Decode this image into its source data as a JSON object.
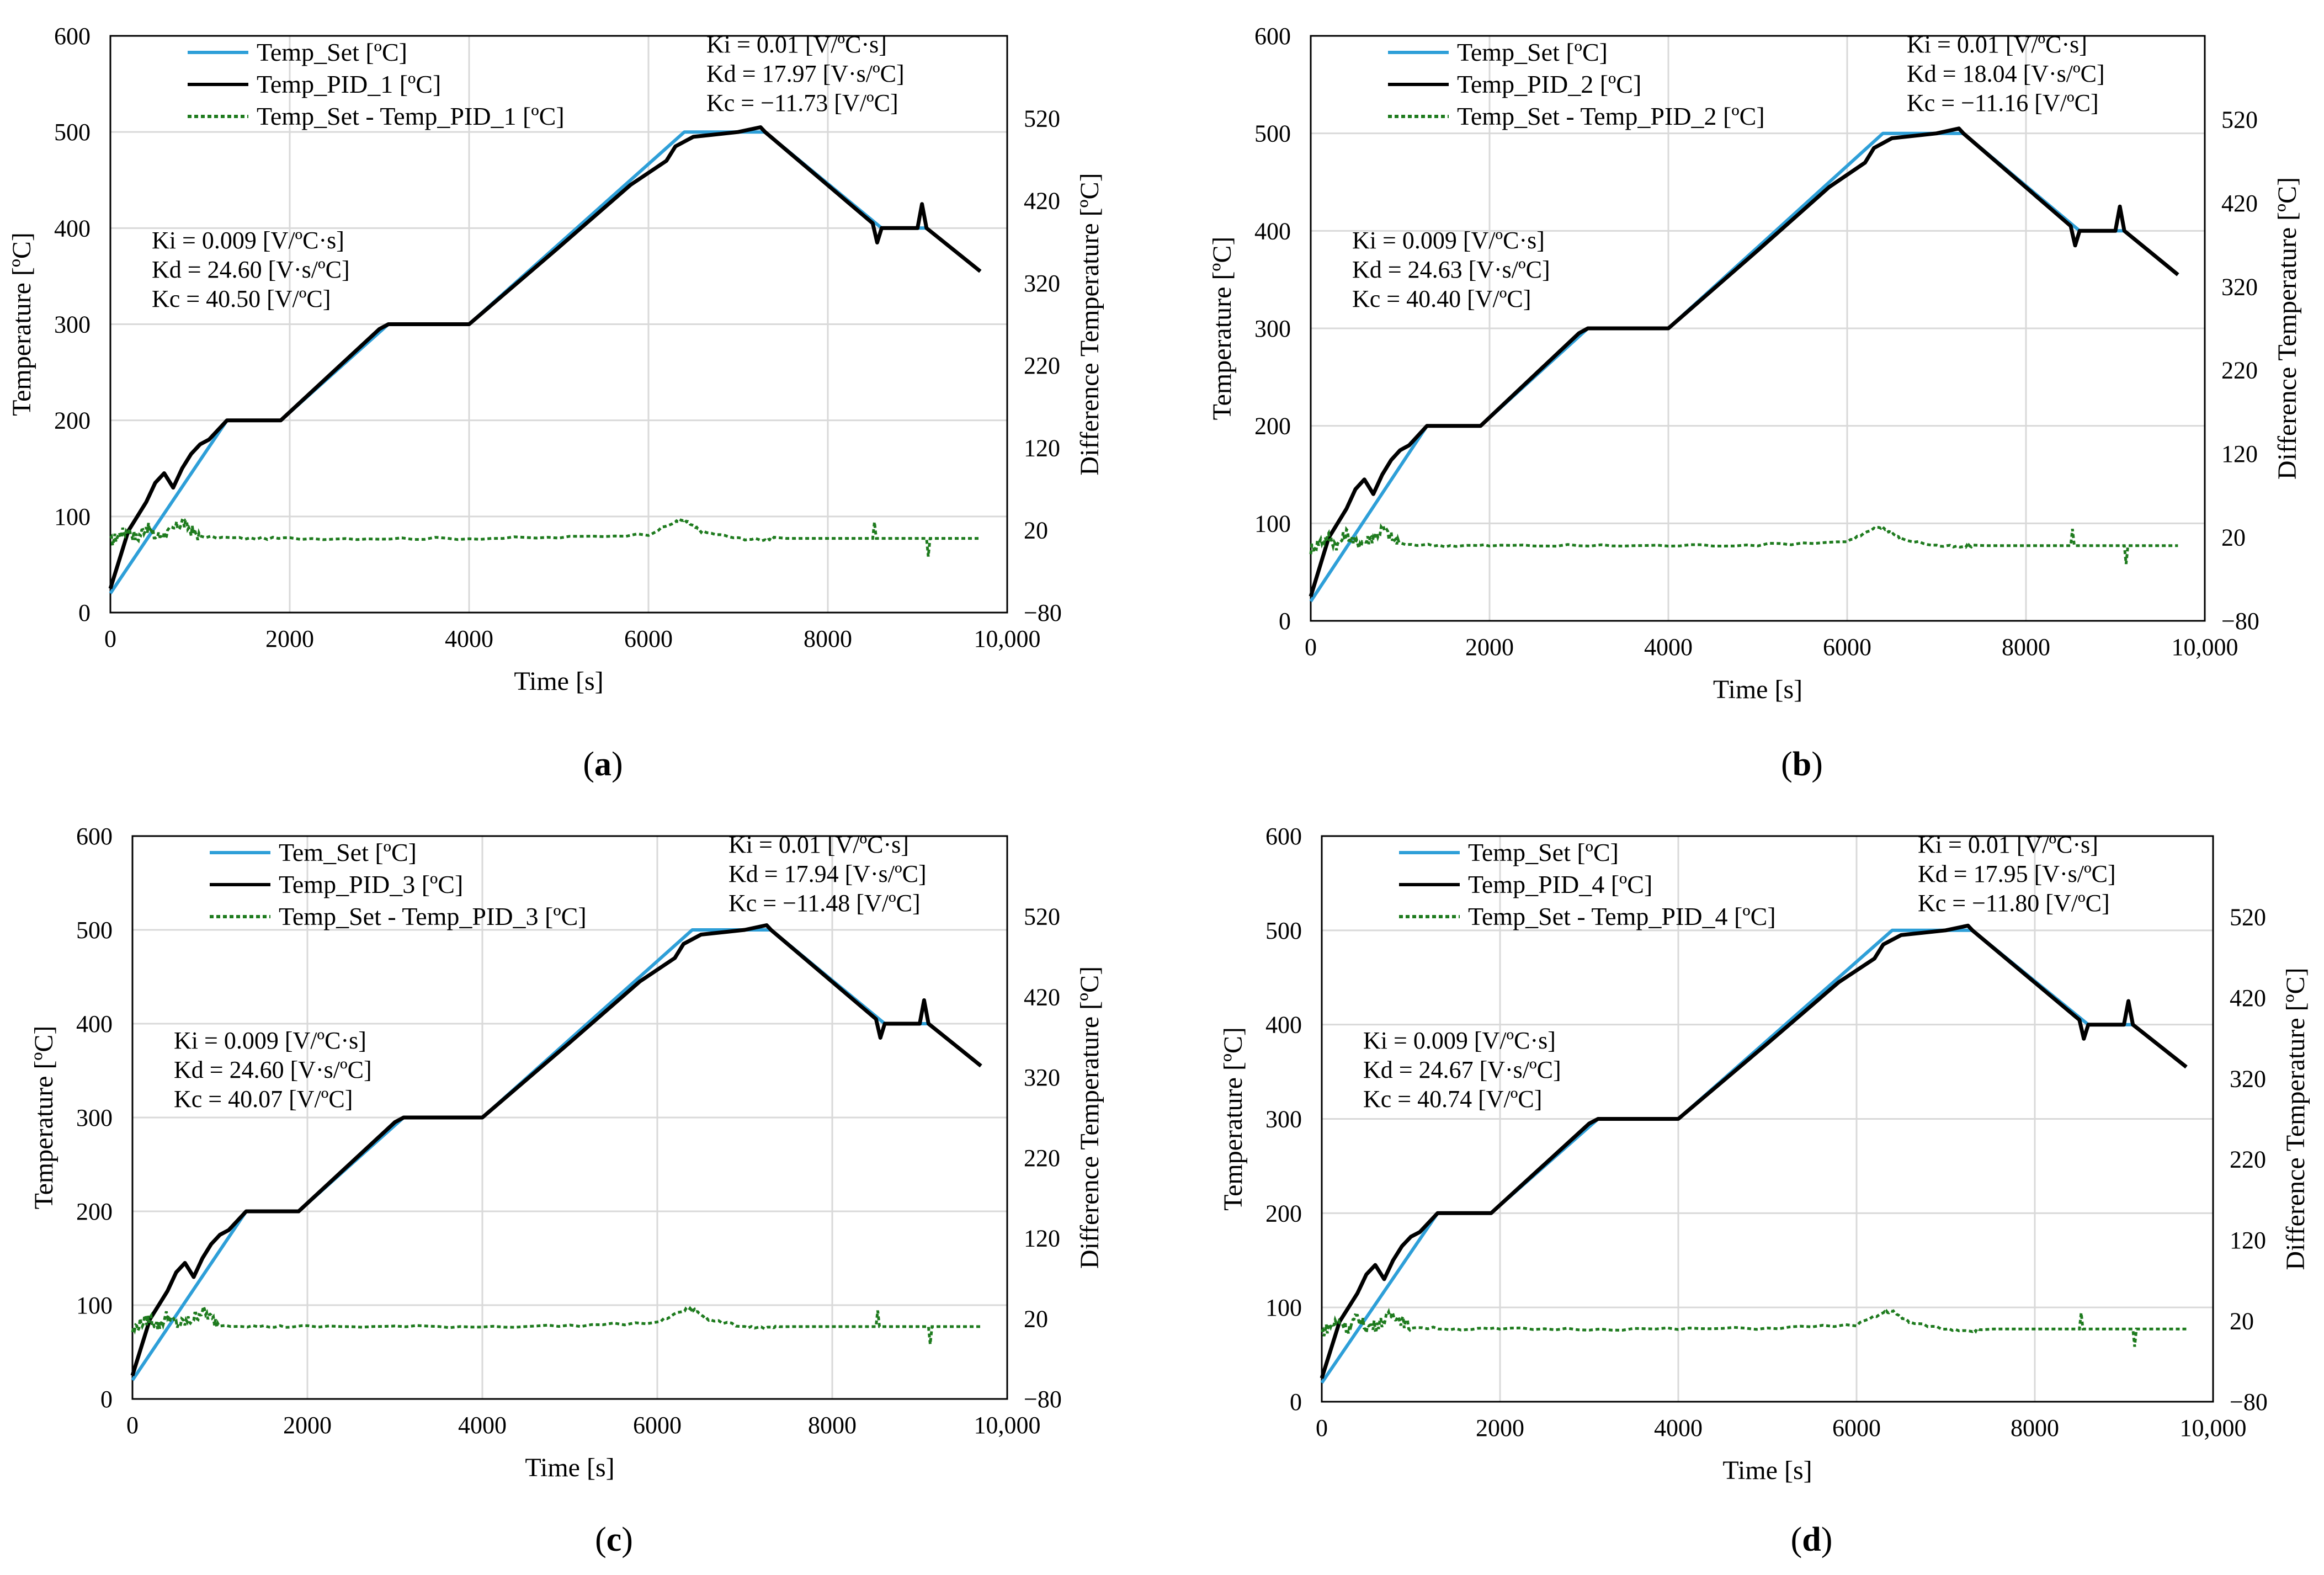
{
  "colors": {
    "set": "#2e9fd8",
    "pid": "#000000",
    "diff": "#1e7b1e",
    "grid": "#d9d9d9",
    "axis": "#000000"
  },
  "chart_data": [
    {
      "type": "line",
      "panel_label": "(a)",
      "xlabel": "Time [s]",
      "ylabel": "Temperature [ºC]",
      "y2label": "Difference Temperature [ºC]",
      "xlim": [
        0,
        10000
      ],
      "ylim": [
        0,
        600
      ],
      "y2lim": [
        -80,
        620
      ],
      "xticks": [
        "0",
        "2000",
        "4000",
        "6000",
        "8000",
        "10,000"
      ],
      "yticks": [
        "0",
        "100",
        "200",
        "300",
        "400",
        "500",
        "600"
      ],
      "y2ticks": [
        "−80",
        "20",
        "120",
        "220",
        "320",
        "420",
        "520"
      ],
      "legend": [
        "Temp_Set [ºC]",
        "Temp_PID_1 [ºC]",
        "Temp_Set - Temp_PID_1 [ºC]"
      ],
      "annotations_left": [
        "Ki = 0.009  [V/ºC·s]",
        "Kd = 24.60  [V·s/ºC]",
        "Kc = 40.50  [V/ºC]"
      ],
      "annotations_right": [
        "Ki = 0.01  [V/ºC·s]",
        "Kd = 17.97  [V·s/ºC]",
        "Kc = −11.73  [V/ºC]"
      ],
      "series": [
        {
          "role": "set",
          "x": [
            0,
            1300,
            1900,
            3100,
            4000,
            6400,
            7300,
            8600,
            9100,
            9700
          ],
          "y": [
            20,
            200,
            200,
            300,
            300,
            500,
            500,
            400,
            400,
            355
          ]
        },
        {
          "role": "pid",
          "x": [
            0,
            100,
            200,
            300,
            400,
            500,
            600,
            700,
            800,
            900,
            1000,
            1100,
            1300,
            1400,
            1900,
            3000,
            3100,
            3950,
            4000,
            5000,
            5800,
            6200,
            6300,
            6400,
            6500,
            7000,
            7250,
            7300,
            8500,
            8550,
            8600,
            9000,
            9050,
            9100,
            9700
          ],
          "y": [
            25,
            55,
            85,
            100,
            115,
            135,
            145,
            130,
            150,
            165,
            175,
            180,
            200,
            200,
            200,
            295,
            300,
            300,
            300,
            380,
            445,
            470,
            485,
            490,
            495,
            500,
            505,
            500,
            405,
            385,
            400,
            400,
            425,
            400,
            355
          ]
        },
        {
          "role": "diff",
          "x": [
            0,
            100,
            200,
            300,
            400,
            500,
            600,
            700,
            800,
            900,
            1000,
            1500,
            2000,
            3000,
            4000,
            5000,
            6000,
            6300,
            6400,
            6500,
            6600,
            7000,
            7300,
            7400,
            8500,
            8520,
            8540,
            9100,
            9120,
            9140,
            9700
          ],
          "y": [
            5,
            15,
            20,
            10,
            25,
            12,
            15,
            20,
            30,
            20,
            12,
            10,
            10,
            10,
            10,
            11,
            15,
            30,
            32,
            25,
            18,
            10,
            8,
            10,
            10,
            30,
            10,
            10,
            -12,
            10,
            10
          ]
        }
      ]
    },
    {
      "type": "line",
      "panel_label": "(b)",
      "xlabel": "Time [s]",
      "ylabel": "Temperature [ºC]",
      "y2label": "Difference Temperature [ºC]",
      "xlim": [
        0,
        10000
      ],
      "ylim": [
        0,
        600
      ],
      "y2lim": [
        -80,
        620
      ],
      "xticks": [
        "0",
        "2000",
        "4000",
        "6000",
        "8000",
        "10,000"
      ],
      "yticks": [
        "0",
        "100",
        "200",
        "300",
        "400",
        "500",
        "600"
      ],
      "y2ticks": [
        "−80",
        "20",
        "120",
        "220",
        "320",
        "420",
        "520"
      ],
      "legend": [
        "Temp_Set [ºC]",
        "Temp_PID_2 [ºC]",
        "Temp_Set - Temp_PID_2 [ºC]"
      ],
      "annotations_left": [
        "Ki = 0.009  [V/ºC·s]",
        "Kd = 24.63  [V·s/ºC]",
        "Kc = 40.40  [V/ºC]"
      ],
      "annotations_right": [
        "Ki = 0.01  [V/ºC·s]",
        "Kd = 18.04  [V·s/ºC]",
        "Kc = −11.16  [V/ºC]"
      ],
      "series": [
        {
          "role": "set",
          "x": [
            0,
            1300,
            1900,
            3100,
            4000,
            6400,
            7300,
            8600,
            9100,
            9700
          ],
          "y": [
            20,
            200,
            200,
            300,
            300,
            500,
            500,
            400,
            400,
            355
          ]
        },
        {
          "role": "pid",
          "x": [
            0,
            100,
            200,
            300,
            400,
            500,
            600,
            700,
            800,
            900,
            1000,
            1100,
            1300,
            1400,
            1900,
            3000,
            3100,
            3950,
            4000,
            5000,
            5800,
            6200,
            6300,
            6400,
            6500,
            7000,
            7250,
            7300,
            8500,
            8550,
            8600,
            9000,
            9050,
            9100,
            9700
          ],
          "y": [
            25,
            55,
            85,
            100,
            115,
            135,
            145,
            130,
            150,
            165,
            175,
            180,
            200,
            200,
            200,
            295,
            300,
            300,
            300,
            380,
            445,
            470,
            485,
            490,
            495,
            500,
            505,
            500,
            405,
            385,
            400,
            400,
            425,
            400,
            355
          ]
        },
        {
          "role": "diff",
          "x": [
            0,
            100,
            200,
            300,
            400,
            500,
            600,
            700,
            800,
            900,
            1000,
            1500,
            2000,
            3000,
            4000,
            5000,
            6000,
            6300,
            6400,
            6500,
            6600,
            7000,
            7300,
            7400,
            8500,
            8520,
            8540,
            9100,
            9120,
            9140,
            9700
          ],
          "y": [
            5,
            15,
            20,
            10,
            25,
            12,
            15,
            20,
            30,
            20,
            12,
            10,
            10,
            10,
            10,
            11,
            15,
            30,
            32,
            25,
            18,
            10,
            8,
            10,
            10,
            30,
            10,
            10,
            -12,
            10,
            10
          ]
        }
      ]
    },
    {
      "type": "line",
      "panel_label": "(c)",
      "xlabel": "Time [s]",
      "ylabel": "Temperature [ºC]",
      "y2label": "Difference Temperature [ºC]",
      "xlim": [
        0,
        10000
      ],
      "ylim": [
        0,
        600
      ],
      "y2lim": [
        -80,
        620
      ],
      "xticks": [
        "0",
        "2000",
        "4000",
        "6000",
        "8000",
        "10,000"
      ],
      "yticks": [
        "0",
        "100",
        "200",
        "300",
        "400",
        "500",
        "600"
      ],
      "y2ticks": [
        "−80",
        "20",
        "120",
        "220",
        "320",
        "420",
        "520"
      ],
      "legend": [
        "Tem_Set [ºC]",
        "Temp_PID_3 [ºC]",
        "Temp_Set - Temp_PID_3 [ºC]"
      ],
      "annotations_left": [
        "Ki = 0.009  [V/ºC·s]",
        "Kd = 24.60  [V·s/ºC]",
        "Kc = 40.07  [V/ºC]"
      ],
      "annotations_right": [
        "Ki = 0.01  [V/ºC·s]",
        "Kd = 17.94  [V·s/ºC]",
        "Kc = −11.48  [V/ºC]"
      ],
      "series": [
        {
          "role": "set",
          "x": [
            0,
            1300,
            1900,
            3100,
            4000,
            6400,
            7300,
            8600,
            9100,
            9700
          ],
          "y": [
            20,
            200,
            200,
            300,
            300,
            500,
            500,
            400,
            400,
            355
          ]
        },
        {
          "role": "pid",
          "x": [
            0,
            100,
            200,
            300,
            400,
            500,
            600,
            700,
            800,
            900,
            1000,
            1100,
            1300,
            1400,
            1900,
            3000,
            3100,
            3950,
            4000,
            5000,
            5800,
            6200,
            6300,
            6400,
            6500,
            7000,
            7250,
            7300,
            8500,
            8550,
            8600,
            9000,
            9050,
            9100,
            9700
          ],
          "y": [
            25,
            55,
            85,
            100,
            115,
            135,
            145,
            130,
            150,
            165,
            175,
            180,
            200,
            200,
            200,
            295,
            300,
            300,
            300,
            380,
            445,
            470,
            485,
            490,
            495,
            500,
            505,
            500,
            405,
            385,
            400,
            400,
            425,
            400,
            355
          ]
        },
        {
          "role": "diff",
          "x": [
            0,
            100,
            200,
            300,
            400,
            500,
            600,
            700,
            800,
            900,
            1000,
            1500,
            2000,
            3000,
            4000,
            5000,
            6000,
            6300,
            6400,
            6500,
            6600,
            7000,
            7300,
            7400,
            8500,
            8520,
            8540,
            9100,
            9120,
            9140,
            9700
          ],
          "y": [
            5,
            15,
            20,
            10,
            25,
            12,
            15,
            20,
            30,
            20,
            12,
            10,
            10,
            10,
            10,
            11,
            15,
            30,
            32,
            25,
            18,
            10,
            8,
            10,
            10,
            30,
            10,
            10,
            -12,
            10,
            10
          ]
        }
      ]
    },
    {
      "type": "line",
      "panel_label": "(d)",
      "xlabel": "Time [s]",
      "ylabel": "Temperature [ºC]",
      "y2label": "Difference Temperature [ºC]",
      "xlim": [
        0,
        10000
      ],
      "ylim": [
        0,
        600
      ],
      "y2lim": [
        -80,
        620
      ],
      "xticks": [
        "0",
        "2000",
        "4000",
        "6000",
        "8000",
        "10,000"
      ],
      "yticks": [
        "0",
        "100",
        "200",
        "300",
        "400",
        "500",
        "600"
      ],
      "y2ticks": [
        "−80",
        "20",
        "120",
        "220",
        "320",
        "420",
        "520"
      ],
      "legend": [
        "Temp_Set [ºC]",
        "Temp_PID_4 [ºC]",
        "Temp_Set - Temp_PID_4 [ºC]"
      ],
      "annotations_left": [
        "Ki = 0.009  [V/ºC·s]",
        "Kd = 24.67  [V·s/ºC]",
        "Kc = 40.74  [V/ºC]"
      ],
      "annotations_right": [
        "Ki = 0.01  [V/ºC·s]",
        "Kd = 17.95  [V·s/ºC]",
        "Kc = −11.80  [V/ºC]"
      ],
      "series": [
        {
          "role": "set",
          "x": [
            0,
            1300,
            1900,
            3100,
            4000,
            6400,
            7300,
            8600,
            9100,
            9700
          ],
          "y": [
            20,
            200,
            200,
            300,
            300,
            500,
            500,
            400,
            400,
            355
          ]
        },
        {
          "role": "pid",
          "x": [
            0,
            100,
            200,
            300,
            400,
            500,
            600,
            700,
            800,
            900,
            1000,
            1100,
            1300,
            1400,
            1900,
            3000,
            3100,
            3950,
            4000,
            5000,
            5800,
            6200,
            6300,
            6400,
            6500,
            7000,
            7250,
            7300,
            8500,
            8550,
            8600,
            9000,
            9050,
            9100,
            9700
          ],
          "y": [
            25,
            55,
            85,
            100,
            115,
            135,
            145,
            130,
            150,
            165,
            175,
            180,
            200,
            200,
            200,
            295,
            300,
            300,
            300,
            380,
            445,
            470,
            485,
            490,
            495,
            500,
            505,
            500,
            405,
            385,
            400,
            400,
            425,
            400,
            355
          ]
        },
        {
          "role": "diff",
          "x": [
            0,
            100,
            200,
            300,
            400,
            500,
            600,
            700,
            800,
            900,
            1000,
            1500,
            2000,
            3000,
            4000,
            5000,
            6000,
            6300,
            6400,
            6500,
            6600,
            7000,
            7300,
            7400,
            8500,
            8520,
            8540,
            9100,
            9120,
            9140,
            9700
          ],
          "y": [
            5,
            15,
            20,
            10,
            25,
            12,
            15,
            20,
            30,
            20,
            12,
            10,
            10,
            10,
            10,
            11,
            15,
            30,
            32,
            25,
            18,
            10,
            8,
            10,
            10,
            30,
            10,
            10,
            -12,
            10,
            10
          ]
        }
      ]
    }
  ]
}
